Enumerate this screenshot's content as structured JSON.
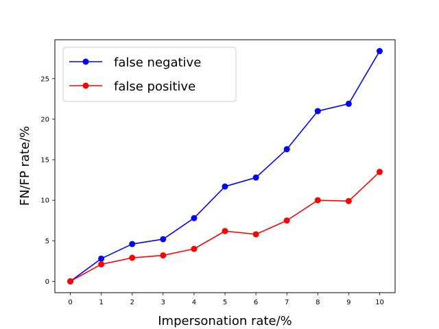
{
  "chart_data": {
    "type": "line",
    "title": "",
    "xlabel": "Impersonation rate/%",
    "ylabel": "FN/FP rate/%",
    "x": [
      0,
      1,
      2,
      3,
      4,
      5,
      6,
      7,
      8,
      9,
      10
    ],
    "xticks": [
      0,
      1,
      2,
      3,
      4,
      5,
      6,
      7,
      8,
      9,
      10
    ],
    "yticks": [
      0,
      5,
      10,
      15,
      20,
      25
    ],
    "xlim": [
      -0.5,
      10.5
    ],
    "ylim": [
      -1.4,
      29.8
    ],
    "grid": false,
    "legend_position": "top-left",
    "series": [
      {
        "name": "false negative",
        "color": "#0000ff",
        "marker": "circle",
        "values": [
          0.0,
          2.8,
          4.6,
          5.2,
          7.8,
          11.7,
          12.8,
          16.3,
          21.0,
          21.9,
          28.4
        ]
      },
      {
        "name": "false positive",
        "color": "#ff0000",
        "marker": "circle",
        "values": [
          0.0,
          2.1,
          2.9,
          3.2,
          4.0,
          6.2,
          5.8,
          7.5,
          10.0,
          9.9,
          13.5
        ]
      }
    ]
  }
}
